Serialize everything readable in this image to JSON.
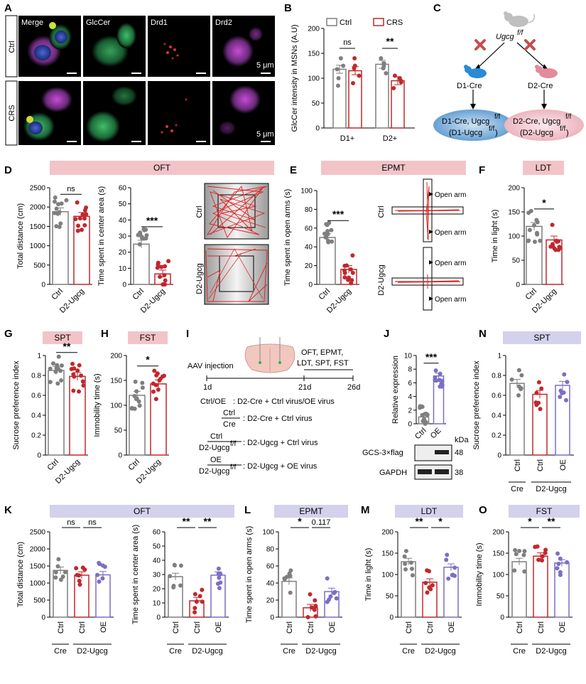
{
  "panels": {
    "A": {
      "label": "A",
      "col_labels": [
        "Merge",
        "GlcCer",
        "Drd1",
        "Drd2"
      ],
      "row_labels": [
        "Ctrl",
        "CRS"
      ],
      "scale_bar": "5 μm"
    },
    "B": {
      "label": "B"
    },
    "C": {
      "label": "C",
      "mouse": "Ugcg",
      "mouse_sup": "f/f",
      "left_cross": "D1-Cre",
      "right_cross": "D2-Cre",
      "left_result": [
        "D1-Cre, Ugcg",
        "(D1-Ugcg",
        ")"
      ],
      "right_result": [
        "D2-Cre, Ugcg",
        "(D2-Ugcg",
        ")"
      ],
      "sup": "f/f",
      "colors": {
        "blue": "#6aa6d6",
        "pink": "#f2b8c3",
        "cross": "#c0504d"
      }
    },
    "D": {
      "label": "D",
      "header": "OFT",
      "track_labels": [
        "Ctrl",
        "D2-Ugcg"
      ],
      "track_sup": "f/f"
    },
    "E": {
      "label": "E",
      "header": "EPMT",
      "track_labels": [
        "Ctrl",
        "D2-Ugcg"
      ],
      "track_sup": "f/f",
      "arm_label": "Open arm"
    },
    "F": {
      "label": "F",
      "header": "LDT"
    },
    "G": {
      "label": "G",
      "header": "SPT"
    },
    "H": {
      "label": "H",
      "header": "FST"
    },
    "I": {
      "label": "I",
      "aav": "AAV injection",
      "tests": [
        "OFT, EPMT,",
        "LDT, SPT, FST"
      ],
      "days": [
        "1d",
        "21d",
        "26d"
      ],
      "legend": [
        {
          "left": "Ctrl/OE",
          "right": ": D2-Cre + Ctrl virus/OE virus"
        },
        {
          "left_top": "Ctrl",
          "left_bottom": "Cre",
          "right": ": D2-Cre + Ctrl virus"
        },
        {
          "left_top": "Ctrl",
          "left_bottom": "D2-Ugcg",
          "right": ": D2-Ugcg + Ctrl virus"
        },
        {
          "left_top": "OE",
          "left_bottom": "D2-Ugcg",
          "right": ": D2-Ugcg + OE virus"
        }
      ],
      "sup": "f/f"
    },
    "J": {
      "label": "J",
      "blot_rows": [
        "GCS-3×flag",
        "GAPDH"
      ],
      "kda_label": "kDa",
      "kda": [
        "48",
        "38"
      ]
    },
    "N": {
      "label": "N",
      "header": "SPT"
    },
    "K": {
      "label": "K",
      "header": "OFT"
    },
    "L": {
      "label": "L",
      "header": "EPMT"
    },
    "M": {
      "label": "M",
      "header": "LDT"
    },
    "O": {
      "label": "O",
      "header": "FST"
    }
  },
  "colors": {
    "gray": "#7f7f7f",
    "red": "#c0282d",
    "purple": "#7b6fc6",
    "header_pink": "#f2c4c8",
    "header_lav": "#d3d1ec"
  },
  "chart_data": [
    {
      "id": "B",
      "type": "bar",
      "title": "",
      "ylabel": "GlcCer intensity in MSNs (A.U)",
      "ylim": [
        0,
        200
      ],
      "yticks": [
        0,
        50,
        100,
        150,
        200
      ],
      "categories": [
        "D1+",
        "D2+"
      ],
      "legend": [
        "Ctrl",
        "CRS"
      ],
      "series": [
        {
          "name": "Ctrl",
          "values": [
            118,
            128
          ]
        },
        {
          "name": "CRS",
          "values": [
            115,
            95
          ]
        }
      ],
      "points": [
        [
          85,
          118,
          125,
          100,
          140
        ],
        [
          90,
          105,
          140,
          120,
          125
        ],
        [
          110,
          130,
          140,
          120,
          125
        ],
        [
          80,
          92,
          100,
          95,
          105
        ]
      ],
      "sig": [
        {
          "text": "ns"
        },
        {
          "text": "**"
        }
      ]
    },
    {
      "id": "D1",
      "type": "bar",
      "ylabel": "Total distance (cm)",
      "ylim": [
        0,
        2500
      ],
      "yticks": [
        0,
        500,
        1000,
        1500,
        2000,
        2500
      ],
      "categories": [
        "Ctrl",
        "D2-Ugcg"
      ],
      "values": [
        1880,
        1760
      ],
      "sig": [
        {
          "text": "ns"
        }
      ]
    },
    {
      "id": "D2",
      "type": "bar",
      "ylabel": "Time spent in center area (s)",
      "ylim": [
        0,
        60
      ],
      "yticks": [
        0,
        10,
        20,
        30,
        40,
        50,
        60
      ],
      "categories": [
        "Ctrl",
        "D2-Ugcg"
      ],
      "values": [
        25,
        6.5
      ],
      "sig": [
        {
          "text": "***"
        }
      ]
    },
    {
      "id": "E",
      "type": "bar",
      "ylabel": "Time spent in open arms (s)",
      "ylim": [
        0,
        100
      ],
      "yticks": [
        0,
        20,
        40,
        60,
        80,
        100
      ],
      "categories": [
        "Ctrl",
        "D2-Ugcg"
      ],
      "values": [
        50,
        16
      ],
      "sig": [
        {
          "text": "***"
        }
      ]
    },
    {
      "id": "F",
      "type": "bar",
      "ylabel": "Time in light  (s)",
      "ylim": [
        0,
        200
      ],
      "yticks": [
        0,
        50,
        100,
        150,
        200
      ],
      "categories": [
        "Ctrl",
        "D2-Ugcg"
      ],
      "values": [
        120,
        92
      ],
      "sig": [
        {
          "text": "*"
        }
      ]
    },
    {
      "id": "G",
      "type": "bar",
      "ylabel": "Sucrose preference index",
      "ylim": [
        0,
        1.0
      ],
      "yticks": [
        0,
        0.2,
        0.4,
        0.6,
        0.8,
        1.0
      ],
      "categories": [
        "Ctrl",
        "D2-Ugcg"
      ],
      "values": [
        0.85,
        0.79
      ],
      "sig": [
        {
          "text": "**"
        }
      ]
    },
    {
      "id": "H",
      "type": "bar",
      "ylabel": "Immobility time (s)",
      "ylim": [
        0,
        200
      ],
      "yticks": [
        0,
        50,
        100,
        150,
        200
      ],
      "categories": [
        "Ctrl",
        "D2-Ugcg"
      ],
      "values": [
        120,
        143
      ],
      "sig": [
        {
          "text": "*"
        }
      ]
    },
    {
      "id": "J",
      "type": "bar",
      "ylabel": "Relative expression",
      "ylim": [
        0,
        10
      ],
      "yticks": [
        0,
        2,
        4,
        6,
        8,
        10
      ],
      "categories": [
        "Ctrl",
        "OE"
      ],
      "values": [
        1.0,
        7.0
      ],
      "sig": [
        {
          "text": "***"
        }
      ]
    },
    {
      "id": "N",
      "type": "bar",
      "ylabel": "Sucrose preference index",
      "ylim": [
        0,
        1.0
      ],
      "yticks": [
        0,
        0.2,
        0.4,
        0.6,
        0.8,
        1.0
      ],
      "categories": [
        "Ctrl",
        "Ctrl",
        "OE"
      ],
      "groups": [
        "Cre",
        "D2-Ugcg"
      ],
      "values": [
        0.72,
        0.61,
        0.7
      ]
    },
    {
      "id": "K1",
      "type": "bar",
      "ylabel": "Total distance (cm)",
      "ylim": [
        0,
        2500
      ],
      "yticks": [
        0,
        500,
        1000,
        1500,
        2000,
        2500
      ],
      "categories": [
        "Ctrl",
        "Ctrl",
        "OE"
      ],
      "groups": [
        "Cre",
        "D2-Ugcg"
      ],
      "values": [
        1370,
        1230,
        1240
      ],
      "sig": [
        {
          "text": "ns"
        },
        {
          "text": "ns"
        }
      ]
    },
    {
      "id": "K2",
      "type": "bar",
      "ylabel": "Time spent in center area (s)",
      "ylim": [
        0,
        60
      ],
      "yticks": [
        0,
        10,
        20,
        30,
        40,
        50,
        60
      ],
      "categories": [
        "Ctrl",
        "Ctrl",
        "OE"
      ],
      "groups": [
        "Cre",
        "D2-Ugcg"
      ],
      "values": [
        28.5,
        11.5,
        29.5
      ],
      "sig": [
        {
          "text": "**"
        },
        {
          "text": "**"
        }
      ]
    },
    {
      "id": "L",
      "type": "bar",
      "ylabel": "Time spent in open arms (s)",
      "ylim": [
        0,
        100
      ],
      "yticks": [
        0,
        20,
        40,
        60,
        80,
        100
      ],
      "categories": [
        "Ctrl",
        "Ctrl",
        "OE"
      ],
      "groups": [
        "Cre",
        "D2-Ugcg"
      ],
      "values": [
        42,
        11,
        30
      ],
      "sig": [
        {
          "text": "*"
        },
        {
          "text": "0.117"
        }
      ]
    },
    {
      "id": "M",
      "type": "bar",
      "ylabel": "Time in light (s)",
      "ylim": [
        0,
        200
      ],
      "yticks": [
        0,
        50,
        100,
        150,
        200
      ],
      "categories": [
        "Ctrl",
        "Ctrl",
        "OE"
      ],
      "groups": [
        "Cre",
        "D2-Ugcg"
      ],
      "values": [
        130,
        82,
        117
      ],
      "sig": [
        {
          "text": "**"
        },
        {
          "text": "*"
        }
      ]
    },
    {
      "id": "O",
      "type": "bar",
      "ylabel": "Immobility time (s)",
      "ylim": [
        0,
        200
      ],
      "yticks": [
        0,
        50,
        100,
        150,
        200
      ],
      "categories": [
        "Ctrl",
        "Ctrl",
        "OE"
      ],
      "groups": [
        "Cre",
        "D2-Ugcg"
      ],
      "values": [
        130,
        143,
        127
      ],
      "sig": [
        {
          "text": "*"
        },
        {
          "text": "**"
        }
      ]
    }
  ]
}
